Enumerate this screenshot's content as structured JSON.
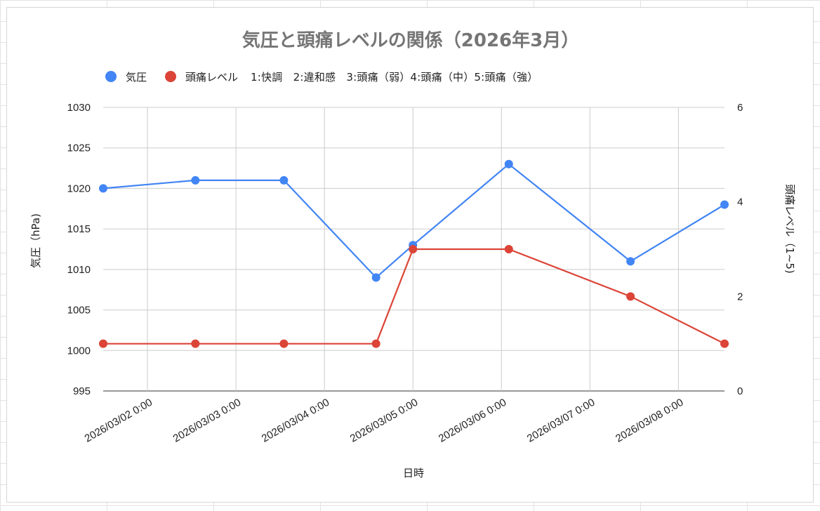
{
  "chart_data": {
    "type": "line",
    "title": "気圧と頭痛レベルの関係（2026年3月）",
    "xlabel": "日時",
    "ylabel_left": "気圧（hPa)",
    "ylabel_right": "頭痛レベル（1~5)",
    "legend_position": "top-left",
    "grid": true,
    "x_ticks": [
      "2026/03/02 0:00",
      "2026/03/03 0:00",
      "2026/03/04 0:00",
      "2026/03/05 0:00",
      "2026/03/06 0:00",
      "2026/03/07 0:00",
      "2026/03/08 0:00"
    ],
    "x_range": [
      "2026/03/01 12:00",
      "2026/03/08 12:30"
    ],
    "y_left": {
      "ylim": [
        995,
        1030
      ],
      "ticks": [
        995,
        1000,
        1005,
        1010,
        1015,
        1020,
        1025,
        1030
      ]
    },
    "y_right": {
      "ylim": [
        0,
        6
      ],
      "ticks": [
        0,
        2,
        4,
        6
      ]
    },
    "series": [
      {
        "name": "気圧",
        "axis": "left",
        "color": "#4285f4",
        "x": [
          "2026/03/01 12:00",
          "2026/03/02 13:00",
          "2026/03/03 13:00",
          "2026/03/04 14:00",
          "2026/03/05 0:00",
          "2026/03/06 2:00",
          "2026/03/07 11:00",
          "2026/03/08 12:30"
        ],
        "values": [
          1020,
          1021,
          1021,
          1009,
          1013,
          1023,
          1011,
          1018
        ]
      },
      {
        "name": "頭痛レベル",
        "legend_note": "1:快調　2:違和感　3:頭痛（弱）4:頭痛（中）5:頭痛（強）",
        "axis": "right",
        "color": "#db4437",
        "x": [
          "2026/03/01 12:00",
          "2026/03/02 13:00",
          "2026/03/03 13:00",
          "2026/03/04 14:00",
          "2026/03/05 0:00",
          "2026/03/06 2:00",
          "2026/03/07 11:00",
          "2026/03/08 12:30"
        ],
        "values": [
          1,
          1,
          1,
          1,
          3,
          3,
          2,
          1
        ]
      }
    ]
  }
}
